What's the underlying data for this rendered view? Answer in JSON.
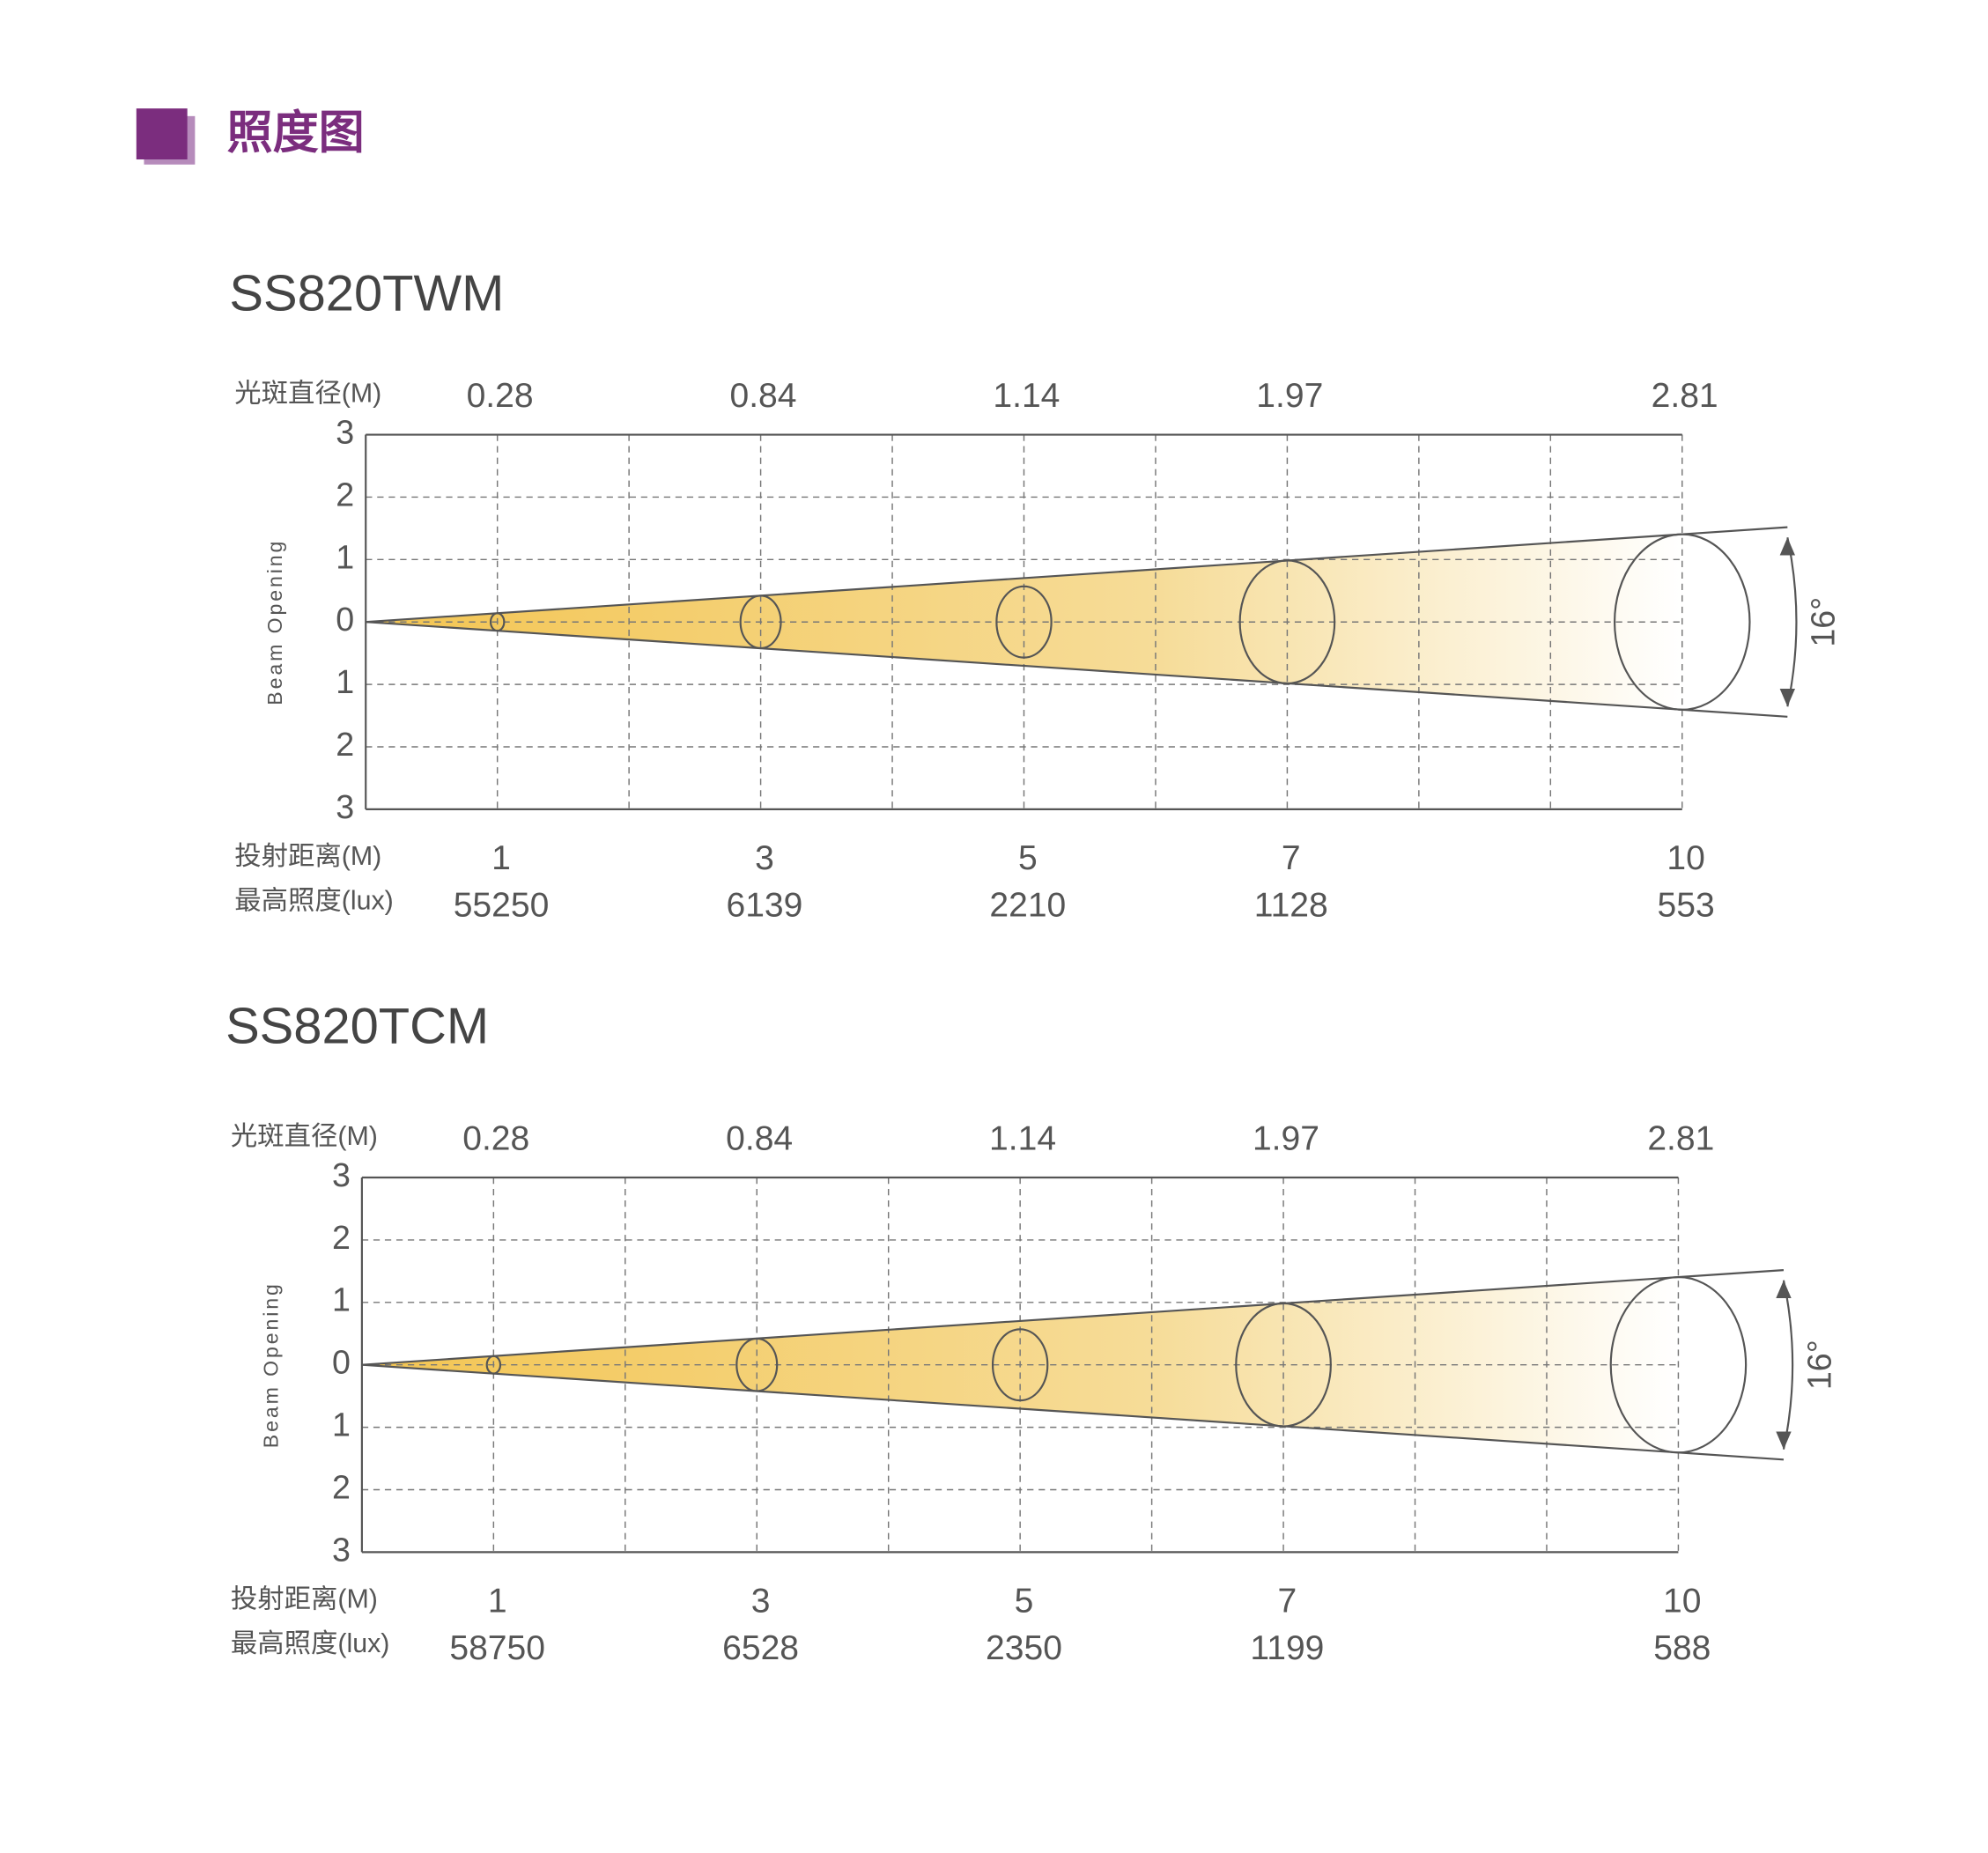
{
  "header": {
    "title": "照度图"
  },
  "chart_data": [
    {
      "type": "beam",
      "title": "SS820TWM",
      "diameter_label": "光斑直径(M)",
      "distance_label": "投射距离(M)",
      "lux_label": "最高照度(lux)",
      "y_label": "Beam Opening",
      "angle_label": "16°",
      "x": [
        1,
        3,
        5,
        7,
        10
      ],
      "xlim": [
        0,
        10
      ],
      "diameters": [
        0.28,
        0.84,
        1.14,
        1.97,
        2.81
      ],
      "lux": [
        55250,
        6139,
        2210,
        1128,
        553
      ],
      "ylim": [
        -3,
        3
      ],
      "yticks": [
        {
          "value": 3,
          "label": "3"
        },
        {
          "value": 2,
          "label": "2"
        },
        {
          "value": 1,
          "label": "1"
        },
        0,
        {
          "value": -1,
          "label": "1"
        },
        {
          "value": -2,
          "label": "2"
        },
        {
          "value": -3,
          "label": "3"
        }
      ],
      "grid": true,
      "color": "#f3c552"
    },
    {
      "type": "beam",
      "title": "SS820TCM",
      "diameter_label": "光斑直径(M)",
      "distance_label": "投射距离(M)",
      "lux_label": "最高照度(lux)",
      "y_label": "Beam Opening",
      "angle_label": "16°",
      "x": [
        1,
        3,
        5,
        7,
        10
      ],
      "xlim": [
        0,
        10
      ],
      "diameters": [
        0.28,
        0.84,
        1.14,
        1.97,
        2.81
      ],
      "lux": [
        58750,
        6528,
        2350,
        1199,
        588
      ],
      "ylim": [
        -3,
        3
      ],
      "yticks": [
        {
          "value": 3,
          "label": "3"
        },
        {
          "value": 2,
          "label": "2"
        },
        {
          "value": 1,
          "label": "1"
        },
        0,
        {
          "value": -1,
          "label": "1"
        },
        {
          "value": -2,
          "label": "2"
        },
        {
          "value": -3,
          "label": "3"
        }
      ],
      "grid": true,
      "color": "#f3c552"
    }
  ]
}
